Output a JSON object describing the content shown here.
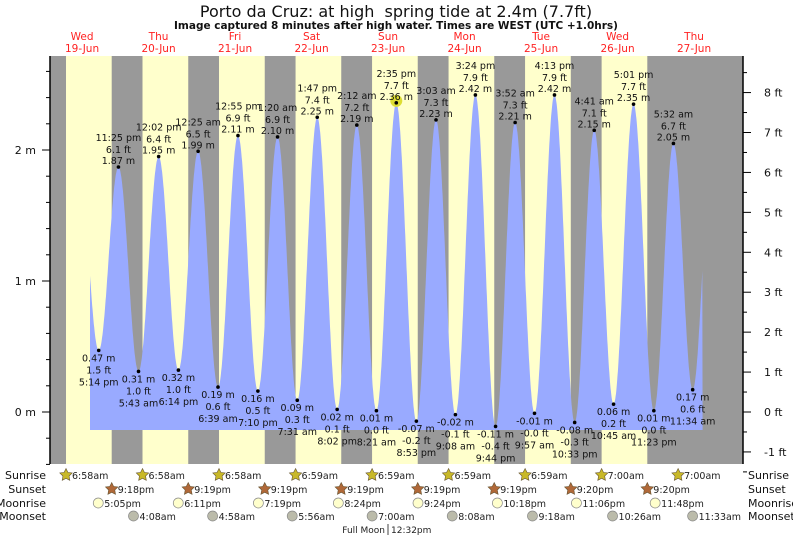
{
  "chart_data": {
    "type": "area",
    "title": "Porto da Cruz: at high  spring tide at 2.4m (7.7ft)",
    "subtitle": "Image captured 8 minutes after high water. Times are WEST (UTC +1.0hrs)",
    "days": [
      {
        "dow": "Wed",
        "date": "19-Jun"
      },
      {
        "dow": "Thu",
        "date": "20-Jun"
      },
      {
        "dow": "Fri",
        "date": "21-Jun"
      },
      {
        "dow": "Sat",
        "date": "22-Jun"
      },
      {
        "dow": "Sun",
        "date": "23-Jun"
      },
      {
        "dow": "Mon",
        "date": "24-Jun"
      },
      {
        "dow": "Tue",
        "date": "25-Jun"
      },
      {
        "dow": "Wed",
        "date": "26-Jun"
      },
      {
        "dow": "Thu",
        "date": "27-Jun"
      }
    ],
    "y_left": {
      "unit": "m",
      "ticks": [
        "0 m",
        "1 m",
        "2 m"
      ],
      "range_m": [
        -0.45,
        2.7
      ]
    },
    "y_right": {
      "unit": "ft",
      "ticks": [
        "-1 ft",
        "0 ft",
        "1 ft",
        "2 ft",
        "3 ft",
        "4 ft",
        "5 ft",
        "6 ft",
        "7 ft",
        "8 ft"
      ]
    },
    "current_highlight": "Sun 23-Jun 2:35 pm high",
    "extremes": [
      {
        "day": 0,
        "type": "low",
        "time": "5:14 pm",
        "m": "0.47 m",
        "ft": "1.5 ft",
        "value": 0.47
      },
      {
        "day": 0,
        "type": "high",
        "time": "11:25 pm",
        "m": "1.87 m",
        "ft": "6.1 ft",
        "value": 1.87
      },
      {
        "day": 1,
        "type": "low",
        "time": "5:43 am",
        "m": "0.31 m",
        "ft": "1.0 ft",
        "value": 0.31
      },
      {
        "day": 1,
        "type": "high",
        "time": "12:02 pm",
        "m": "1.95 m",
        "ft": "6.4 ft",
        "value": 1.95
      },
      {
        "day": 1,
        "type": "low",
        "time": "6:14 pm",
        "m": "0.32 m",
        "ft": "1.0 ft",
        "value": 0.32
      },
      {
        "day": 2,
        "type": "high",
        "time": "12:25 am",
        "m": "1.99 m",
        "ft": "6.5 ft",
        "value": 1.99
      },
      {
        "day": 2,
        "type": "low",
        "time": "6:39 am",
        "m": "0.19 m",
        "ft": "0.6 ft",
        "value": 0.19
      },
      {
        "day": 2,
        "type": "high",
        "time": "12:55 pm",
        "m": "2.11 m",
        "ft": "6.9 ft",
        "value": 2.11
      },
      {
        "day": 2,
        "type": "low",
        "time": "7:10 pm",
        "m": "0.16 m",
        "ft": "0.5 ft",
        "value": 0.16
      },
      {
        "day": 3,
        "type": "high",
        "time": "1:20 am",
        "m": "2.10 m",
        "ft": "6.9 ft",
        "value": 2.1
      },
      {
        "day": 3,
        "type": "low",
        "time": "7:31 am",
        "m": "0.09 m",
        "ft": "0.3 ft",
        "value": 0.09
      },
      {
        "day": 3,
        "type": "high",
        "time": "1:47 pm",
        "m": "2.25 m",
        "ft": "7.4 ft",
        "value": 2.25
      },
      {
        "day": 3,
        "type": "low",
        "time": "8:02 pm",
        "m": "0.02 m",
        "ft": "0.1 ft",
        "value": 0.02
      },
      {
        "day": 4,
        "type": "high",
        "time": "2:12 am",
        "m": "2.19 m",
        "ft": "7.2 ft",
        "value": 2.19
      },
      {
        "day": 4,
        "type": "low",
        "time": "8:21 am",
        "m": "0.01 m",
        "ft": "0.0 ft",
        "value": 0.01
      },
      {
        "day": 4,
        "type": "high",
        "time": "2:35 pm",
        "m": "2.36 m",
        "ft": "7.7 ft",
        "value": 2.36
      },
      {
        "day": 4,
        "type": "low",
        "time": "8:53 pm",
        "m": "-0.07 m",
        "ft": "-0.2 ft",
        "value": -0.07
      },
      {
        "day": 5,
        "type": "high",
        "time": "3:03 am",
        "m": "2.23 m",
        "ft": "7.3 ft",
        "value": 2.23
      },
      {
        "day": 5,
        "type": "low",
        "time": "9:08 am",
        "m": "-0.02 m",
        "ft": "-0.1 ft",
        "value": -0.02
      },
      {
        "day": 5,
        "type": "high",
        "time": "3:24 pm",
        "m": "2.42 m",
        "ft": "7.9 ft",
        "value": 2.42
      },
      {
        "day": 5,
        "type": "low",
        "time": "9:44 pm",
        "m": "-0.11 m",
        "ft": "-0.4 ft",
        "value": -0.11
      },
      {
        "day": 6,
        "type": "high",
        "time": "3:52 am",
        "m": "2.21 m",
        "ft": "7.3 ft",
        "value": 2.21
      },
      {
        "day": 6,
        "type": "low",
        "time": "9:57 am",
        "m": "-0.01 m",
        "ft": "-0.0 ft",
        "value": -0.01
      },
      {
        "day": 6,
        "type": "high",
        "time": "4:13 pm",
        "m": "2.42 m",
        "ft": "7.9 ft",
        "value": 2.42
      },
      {
        "day": 6,
        "type": "low",
        "time": "10:33 pm",
        "m": "-0.08 m",
        "ft": "-0.3 ft",
        "value": -0.08
      },
      {
        "day": 7,
        "type": "high",
        "time": "4:41 am",
        "m": "2.15 m",
        "ft": "7.1 ft",
        "value": 2.15
      },
      {
        "day": 7,
        "type": "low",
        "time": "10:45 am",
        "m": "0.06 m",
        "ft": "0.2 ft",
        "value": 0.06
      },
      {
        "day": 7,
        "type": "high",
        "time": "5:01 pm",
        "m": "2.35 m",
        "ft": "7.7 ft",
        "value": 2.35
      },
      {
        "day": 7,
        "type": "low",
        "time": "11:23 pm",
        "m": "0.01 m",
        "ft": "0.0 ft",
        "value": 0.01
      },
      {
        "day": 8,
        "type": "high",
        "time": "5:32 am",
        "m": "2.05 m",
        "ft": "6.7 ft",
        "value": 2.05
      },
      {
        "day": 8,
        "type": "low",
        "time": "11:34 am",
        "m": "0.17 m",
        "ft": "0.6 ft",
        "value": 0.17
      }
    ],
    "row_labels": {
      "sunrise": "Sunrise",
      "sunset": "Sunset",
      "moonrise": "Moonrise",
      "moonset": "Moonset"
    },
    "sunrise": [
      {
        "day": 0,
        "time": "6:58am"
      },
      {
        "day": 1,
        "time": "6:58am"
      },
      {
        "day": 2,
        "time": "6:58am"
      },
      {
        "day": 3,
        "time": "6:59am"
      },
      {
        "day": 4,
        "time": "6:59am"
      },
      {
        "day": 5,
        "time": "6:59am"
      },
      {
        "day": 6,
        "time": "6:59am"
      },
      {
        "day": 7,
        "time": "7:00am"
      },
      {
        "day": 8,
        "time": "7:00am"
      }
    ],
    "sunset": [
      {
        "day": 0,
        "time": "9:18pm"
      },
      {
        "day": 1,
        "time": "9:19pm"
      },
      {
        "day": 2,
        "time": "9:19pm"
      },
      {
        "day": 3,
        "time": "9:19pm"
      },
      {
        "day": 4,
        "time": "9:19pm"
      },
      {
        "day": 5,
        "time": "9:19pm"
      },
      {
        "day": 6,
        "time": "9:20pm"
      },
      {
        "day": 7,
        "time": "9:20pm"
      }
    ],
    "moonrise": [
      {
        "day": 0,
        "time": "5:05pm"
      },
      {
        "day": 1,
        "time": "6:11pm"
      },
      {
        "day": 2,
        "time": "7:19pm"
      },
      {
        "day": 3,
        "time": "8:24pm"
      },
      {
        "day": 4,
        "time": "9:24pm"
      },
      {
        "day": 5,
        "time": "10:18pm"
      },
      {
        "day": 6,
        "time": "11:06pm"
      },
      {
        "day": 7,
        "time": "11:48pm"
      }
    ],
    "moonset": [
      {
        "day": 1,
        "time": "4:08am"
      },
      {
        "day": 2,
        "time": "4:58am"
      },
      {
        "day": 3,
        "time": "5:56am"
      },
      {
        "day": 4,
        "time": "7:00am"
      },
      {
        "day": 5,
        "time": "8:08am"
      },
      {
        "day": 6,
        "time": "9:18am"
      },
      {
        "day": 7,
        "time": "10:26am"
      },
      {
        "day": 8,
        "time": "11:33am"
      }
    ],
    "moon_phase": {
      "label": "Full Moon",
      "time": "12:32pm"
    },
    "colors": {
      "day": "#ffffcc",
      "night": "#999999",
      "water": "#99aaff",
      "date_label": "#ff2222",
      "sunrise": "#c8b828",
      "sunset": "#b06838",
      "moonrise": "#ffffcc",
      "moonset": "#bbbbaa",
      "highlight": "#dddd33"
    }
  }
}
